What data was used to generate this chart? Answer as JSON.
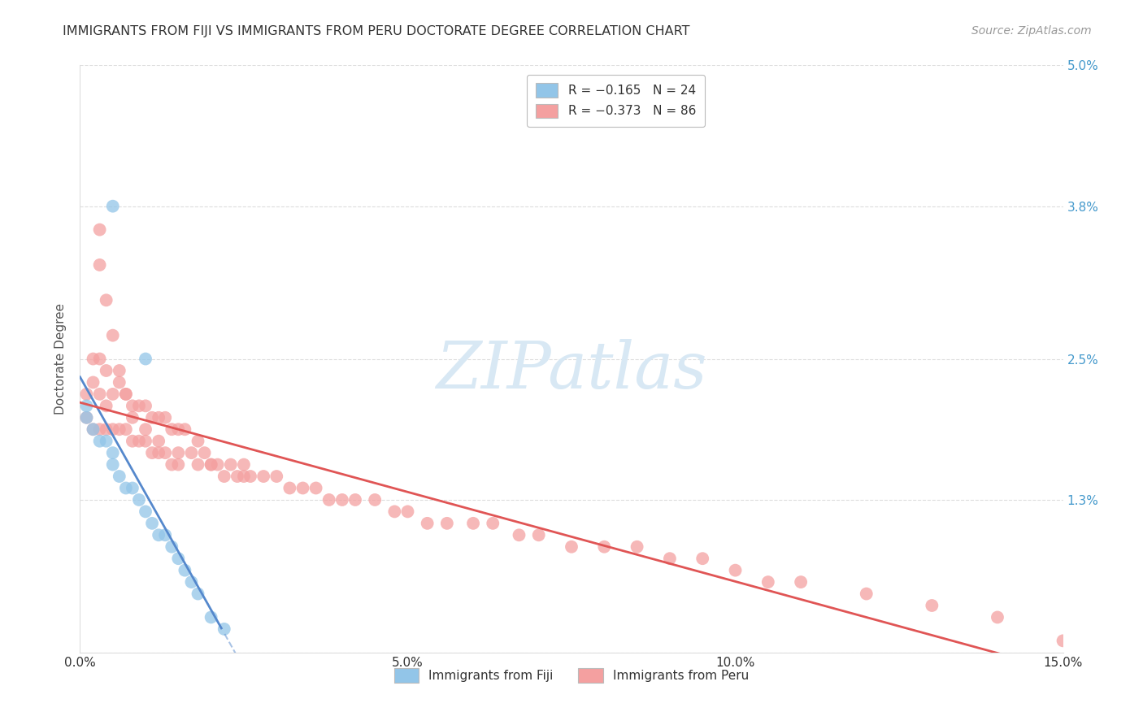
{
  "title": "IMMIGRANTS FROM FIJI VS IMMIGRANTS FROM PERU DOCTORATE DEGREE CORRELATION CHART",
  "source": "Source: ZipAtlas.com",
  "ylabel": "Doctorate Degree",
  "xlim": [
    0,
    0.15
  ],
  "ylim": [
    0,
    0.05
  ],
  "xticks": [
    0.0,
    0.05,
    0.1,
    0.15
  ],
  "xtick_labels": [
    "0.0%",
    "5.0%",
    "10.0%",
    "15.0%"
  ],
  "yticks": [
    0.0,
    0.013,
    0.025,
    0.038,
    0.05
  ],
  "ytick_labels_left": [
    "",
    "",
    "",
    "",
    ""
  ],
  "ytick_labels_right": [
    "",
    "1.3%",
    "2.5%",
    "3.8%",
    "5.0%"
  ],
  "fiji_R": -0.165,
  "fiji_N": 24,
  "peru_R": -0.373,
  "peru_N": 86,
  "fiji_color": "#92C5E8",
  "peru_color": "#F4A0A0",
  "fiji_line_color": "#5588CC",
  "peru_line_color": "#E05555",
  "watermark": "ZIPatlas",
  "watermark_color": "#D8E8F4",
  "fiji_x": [
    0.001,
    0.001,
    0.002,
    0.003,
    0.004,
    0.005,
    0.005,
    0.006,
    0.007,
    0.008,
    0.009,
    0.01,
    0.011,
    0.012,
    0.013,
    0.014,
    0.015,
    0.016,
    0.017,
    0.018,
    0.02,
    0.022,
    0.005,
    0.01
  ],
  "fiji_y": [
    0.021,
    0.02,
    0.019,
    0.018,
    0.018,
    0.017,
    0.016,
    0.015,
    0.014,
    0.014,
    0.013,
    0.012,
    0.011,
    0.01,
    0.01,
    0.009,
    0.008,
    0.007,
    0.006,
    0.005,
    0.003,
    0.002,
    0.038,
    0.025
  ],
  "peru_x": [
    0.001,
    0.001,
    0.002,
    0.002,
    0.002,
    0.003,
    0.003,
    0.003,
    0.004,
    0.004,
    0.004,
    0.005,
    0.005,
    0.006,
    0.006,
    0.007,
    0.007,
    0.008,
    0.008,
    0.009,
    0.009,
    0.01,
    0.01,
    0.011,
    0.011,
    0.012,
    0.012,
    0.013,
    0.013,
    0.014,
    0.014,
    0.015,
    0.015,
    0.016,
    0.017,
    0.018,
    0.018,
    0.019,
    0.02,
    0.021,
    0.022,
    0.023,
    0.024,
    0.025,
    0.026,
    0.028,
    0.03,
    0.032,
    0.034,
    0.036,
    0.038,
    0.04,
    0.042,
    0.045,
    0.048,
    0.05,
    0.053,
    0.056,
    0.06,
    0.063,
    0.067,
    0.07,
    0.075,
    0.08,
    0.085,
    0.09,
    0.095,
    0.1,
    0.105,
    0.11,
    0.12,
    0.13,
    0.14,
    0.15,
    0.003,
    0.003,
    0.004,
    0.005,
    0.006,
    0.007,
    0.008,
    0.01,
    0.012,
    0.015,
    0.02,
    0.025
  ],
  "peru_y": [
    0.022,
    0.02,
    0.025,
    0.023,
    0.019,
    0.025,
    0.022,
    0.019,
    0.024,
    0.021,
    0.019,
    0.022,
    0.019,
    0.023,
    0.019,
    0.022,
    0.019,
    0.021,
    0.018,
    0.021,
    0.018,
    0.021,
    0.018,
    0.02,
    0.017,
    0.02,
    0.017,
    0.02,
    0.017,
    0.019,
    0.016,
    0.019,
    0.016,
    0.019,
    0.017,
    0.018,
    0.016,
    0.017,
    0.016,
    0.016,
    0.015,
    0.016,
    0.015,
    0.016,
    0.015,
    0.015,
    0.015,
    0.014,
    0.014,
    0.014,
    0.013,
    0.013,
    0.013,
    0.013,
    0.012,
    0.012,
    0.011,
    0.011,
    0.011,
    0.011,
    0.01,
    0.01,
    0.009,
    0.009,
    0.009,
    0.008,
    0.008,
    0.007,
    0.006,
    0.006,
    0.005,
    0.004,
    0.003,
    0.001,
    0.036,
    0.033,
    0.03,
    0.027,
    0.024,
    0.022,
    0.02,
    0.019,
    0.018,
    0.017,
    0.016,
    0.015
  ]
}
